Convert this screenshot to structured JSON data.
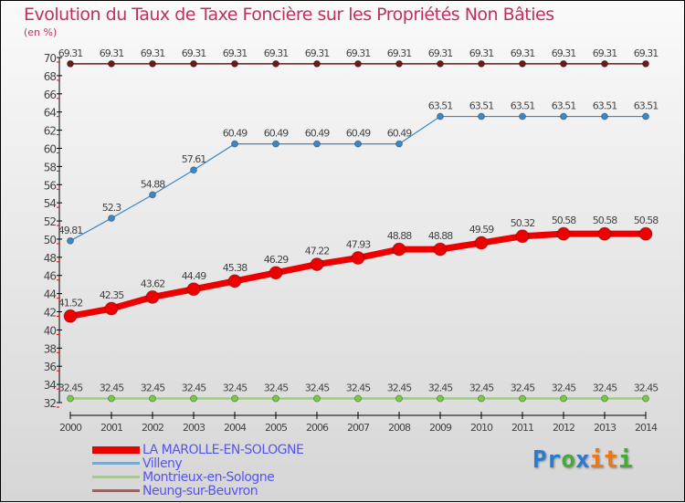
{
  "chart_data": {
    "type": "line",
    "title": "Evolution du Taux de Taxe Foncière sur les Propriétés Non Bâties",
    "ylabel": "(en %)",
    "ylim": [
      32,
      70
    ],
    "yticks": [
      32,
      34,
      36,
      38,
      40,
      42,
      44,
      46,
      48,
      50,
      52,
      54,
      56,
      58,
      60,
      62,
      64,
      66,
      68,
      70
    ],
    "x": [
      "2000",
      "2001",
      "2002",
      "2003",
      "2004",
      "2005",
      "2006",
      "2007",
      "2008",
      "2009",
      "2010",
      "2011",
      "2012",
      "2013",
      "2014"
    ],
    "series": [
      {
        "name": "LA MAROLLE-EN-SOLOGNE",
        "color": "#ee0000",
        "values": [
          41.52,
          42.35,
          43.62,
          44.49,
          45.38,
          46.29,
          47.22,
          47.93,
          48.88,
          48.88,
          49.59,
          50.32,
          50.58,
          50.58,
          50.58
        ]
      },
      {
        "name": "Villeny",
        "color": "#3a88c8",
        "values": [
          49.81,
          52.3,
          54.88,
          57.61,
          60.49,
          60.49,
          60.49,
          60.49,
          60.49,
          63.51,
          63.51,
          63.51,
          63.51,
          63.51,
          63.51
        ]
      },
      {
        "name": "Montrieux-en-Sologne",
        "color": "#77cc44",
        "values": [
          32.45,
          32.45,
          32.45,
          32.45,
          32.45,
          32.45,
          32.45,
          32.45,
          32.45,
          32.45,
          32.45,
          32.45,
          32.45,
          32.45,
          32.45
        ]
      },
      {
        "name": "Neung-sur-Beuvron",
        "color": "#6a1a1a",
        "values": [
          69.31,
          69.31,
          69.31,
          69.31,
          69.31,
          69.31,
          69.31,
          69.31,
          69.31,
          69.31,
          69.31,
          69.31,
          69.31,
          69.31,
          69.31
        ]
      }
    ],
    "legend": "bottom-left"
  },
  "logo": "Proxiti"
}
